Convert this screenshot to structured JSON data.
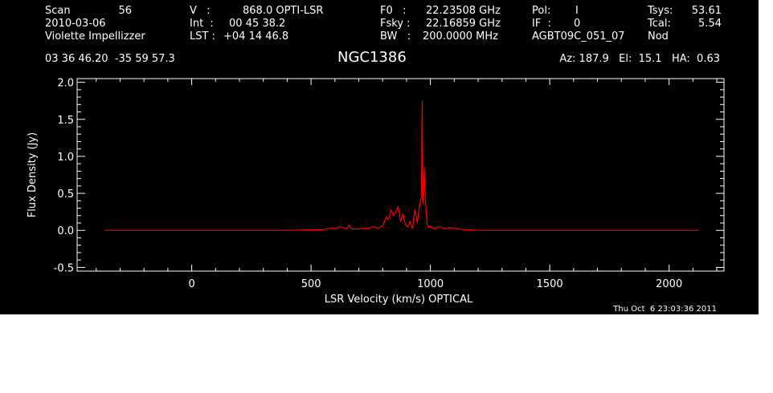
{
  "header": {
    "col1": {
      "scan_label": "Scan",
      "scan_value": "56",
      "date": "2010-03-06",
      "observer": "Violette Impellizzer"
    },
    "col2": {
      "v_label": "V   :",
      "v_value": "868.0 OPTI-LSR",
      "int_label": "Int  :",
      "int_value": "00 45 38.2",
      "lst_label": "LST :",
      "lst_value": "+04 14 46.8"
    },
    "col3": {
      "f0_label": "F0   :",
      "f0_value": "22.23508 GHz",
      "fsky_label": "Fsky :",
      "fsky_value": "22.16859 GHz",
      "bw_label": "BW   :",
      "bw_value": "200.0000 MHz"
    },
    "col4": {
      "pol_label": "Pol:",
      "pol_value": "I",
      "if_label": "IF  :",
      "if_value": "0",
      "project": "AGBT09C_051_07"
    },
    "col5": {
      "tsys_label": "Tsys:",
      "tsys_value": "53.61",
      "tcal_label": "Tcal:",
      "tcal_value": "5.54",
      "mode": "Nod"
    },
    "coords": "03 36 46.20  -35 59 57.3",
    "source": "NGC1386",
    "pointing": "Az: 187.9   El:  15.1   HA:  0.63"
  },
  "footer": {
    "timestamp": "Thu Oct  6 23:03:36 2011"
  },
  "colors": {
    "background": "#000000",
    "axes": "#ffffff",
    "series": "#ff0000"
  },
  "chart_data": {
    "type": "line",
    "xlabel": "LSR Velocity (km/s) OPTICAL",
    "ylabel": "Flux Density (Jy)",
    "xlim": [
      -480,
      2230
    ],
    "ylim": [
      -0.55,
      2.05
    ],
    "xticks": [
      0,
      500,
      1000,
      1500,
      2000
    ],
    "xtick_labels": [
      "0",
      "500",
      "1000",
      "1500",
      "2000"
    ],
    "yticks": [
      -0.5,
      0.0,
      0.5,
      1.0,
      1.5,
      2.0
    ],
    "ytick_labels": [
      "-0.5",
      "0.0",
      "0.5",
      "1.0",
      "1.5",
      "2.0"
    ],
    "grid": false,
    "series": [
      {
        "x": [
          -365,
          -200,
          0,
          200,
          400,
          550,
          580,
          600,
          620,
          650,
          660,
          670,
          700,
          740,
          760,
          780,
          800,
          815,
          825,
          835,
          845,
          855,
          865,
          875,
          885,
          895,
          905,
          915,
          925,
          935,
          945,
          955,
          962,
          966,
          968,
          971,
          974,
          978,
          982,
          986,
          992,
          1000,
          1010,
          1020,
          1040,
          1060,
          1080,
          1100,
          1120,
          1140,
          1160,
          1200,
          1300,
          1500,
          1700,
          1900,
          2000,
          2125
        ],
        "y": [
          0.0,
          0.0,
          0.0,
          0.0,
          0.0,
          0.01,
          0.03,
          0.02,
          0.05,
          0.02,
          0.07,
          0.02,
          0.02,
          0.03,
          0.05,
          0.03,
          0.06,
          0.18,
          0.15,
          0.28,
          0.2,
          0.25,
          0.32,
          0.12,
          0.22,
          0.08,
          0.05,
          0.12,
          0.02,
          0.28,
          0.1,
          0.35,
          0.45,
          1.75,
          0.35,
          0.6,
          0.85,
          0.45,
          0.25,
          0.1,
          0.04,
          0.06,
          0.02,
          0.03,
          0.05,
          0.02,
          0.04,
          0.03,
          0.02,
          0.01,
          0.01,
          0.0,
          0.0,
          0.0,
          0.0,
          0.0,
          0.0,
          0.0
        ]
      }
    ]
  }
}
